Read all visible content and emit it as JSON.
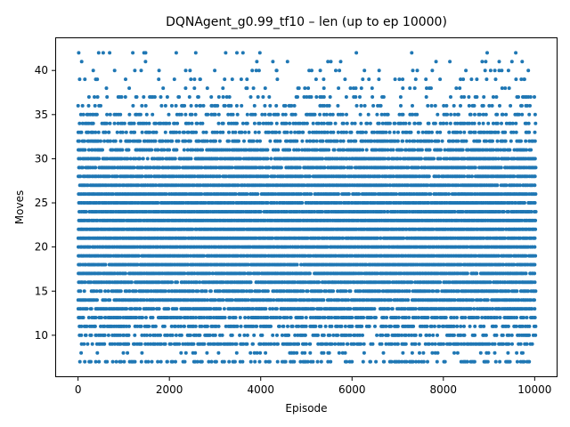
{
  "chart_data": {
    "type": "scatter",
    "title": "DQNAgent_g0.99_tf10 – len (up to ep 10000)",
    "xlabel": "Episode",
    "ylabel": "Moves",
    "xlim": [
      -500,
      10500
    ],
    "ylim": [
      5.25,
      43.75
    ],
    "xticks": [
      0,
      2000,
      4000,
      6000,
      8000,
      10000
    ],
    "yticks": [
      10,
      15,
      20,
      25,
      30,
      35,
      40
    ],
    "grid": false,
    "legend": "none",
    "n_episodes": 10000,
    "marker_color": "#1f77b4",
    "move_levels": [
      7,
      8,
      9,
      10,
      11,
      12,
      13,
      14,
      15,
      16,
      17,
      18,
      19,
      20,
      21,
      22,
      23,
      24,
      25,
      26,
      27,
      28,
      29,
      30,
      31,
      32,
      33,
      34,
      35,
      36,
      37,
      38,
      39,
      40,
      41,
      42
    ],
    "level_frequency": [
      0.35,
      0.12,
      0.55,
      0.4,
      0.55,
      0.6,
      0.75,
      0.8,
      0.7,
      0.85,
      0.9,
      0.92,
      0.95,
      0.97,
      0.95,
      0.97,
      0.97,
      0.95,
      0.93,
      0.9,
      0.88,
      0.85,
      0.8,
      0.75,
      0.6,
      0.55,
      0.45,
      0.35,
      0.28,
      0.22,
      0.15,
      0.1,
      0.08,
      0.06,
      0.04,
      0.05
    ],
    "distribution_note": "dense band between 15 and 30 moves, sparse above 35, floor at 7 moves, max 42 moves"
  }
}
